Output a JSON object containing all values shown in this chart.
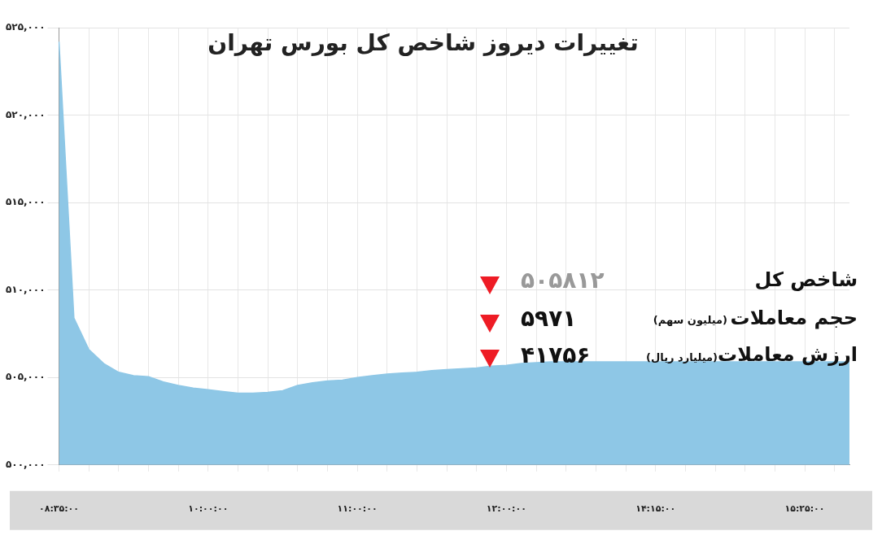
{
  "chart_data": {
    "type": "area",
    "title": "تغییرات دیروز شاخص کل بورس تهران",
    "categories": [
      "۰۸:۳۵:۰۰",
      null,
      null,
      null,
      null,
      null,
      null,
      null,
      null,
      null,
      "۱۰:۰۰:۰۰",
      null,
      null,
      null,
      null,
      null,
      null,
      null,
      null,
      null,
      "۱۱:۰۰:۰۰",
      null,
      null,
      null,
      null,
      null,
      null,
      null,
      null,
      null,
      "۱۲:۰۰:۰۰",
      null,
      null,
      null,
      null,
      null,
      null,
      null,
      null,
      null,
      "۱۴:۱۵:۰۰",
      null,
      null,
      null,
      null,
      null,
      null,
      null,
      null,
      null,
      "۱۵:۲۵:۰۰",
      null,
      null,
      null
    ],
    "values": [
      524200,
      508400,
      506600,
      505800,
      505300,
      505100,
      505050,
      504750,
      504550,
      504400,
      504300,
      504200,
      504100,
      504100,
      504150,
      504250,
      504550,
      504700,
      504800,
      504850,
      505000,
      505100,
      505200,
      505250,
      505300,
      505400,
      505450,
      505500,
      505550,
      505650,
      505700,
      505800,
      505850,
      505900,
      505900,
      505900,
      505900,
      505900,
      505900,
      505900,
      505900,
      505900,
      505900,
      505900,
      505900,
      505900,
      505900,
      505900,
      505900,
      505900,
      505900,
      505900,
      505900,
      505900
    ],
    "color": "#8ec7e6",
    "ylim": [
      500000,
      525000
    ],
    "yticks": [
      {
        "value": 500000,
        "label": "۵۰۰,۰۰۰"
      },
      {
        "value": 505000,
        "label": "۵۰۵,۰۰۰"
      },
      {
        "value": 510000,
        "label": "۵۱۰,۰۰۰"
      },
      {
        "value": 515000,
        "label": "۵۱۵,۰۰۰"
      },
      {
        "value": 520000,
        "label": "۵۲۰,۰۰۰"
      },
      {
        "value": 525000,
        "label": "۵۲۵,۰۰۰"
      }
    ],
    "grid": true,
    "annotations": [
      "شاخص کل",
      "۵۰۵۸۱۲",
      "حجم معاملات",
      "(میلیون سهم)",
      "۵۹۷۱",
      "ارزش معاملات",
      "(میلیارد ریال)",
      "۴۱۷۵۶"
    ]
  }
}
